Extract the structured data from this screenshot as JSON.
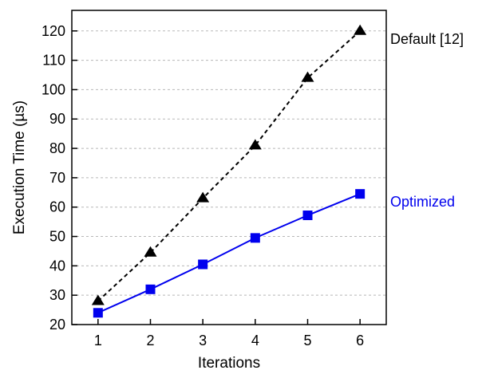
{
  "chart_data": {
    "type": "line",
    "xlabel": "Iterations",
    "ylabel": "Execution Time   (µs)",
    "xlim": [
      0.5,
      6.5
    ],
    "ylim": [
      20,
      127
    ],
    "x_ticks": [
      1,
      2,
      3,
      4,
      5,
      6
    ],
    "y_ticks": [
      20,
      30,
      40,
      50,
      60,
      70,
      80,
      90,
      100,
      110,
      120
    ],
    "grid": "horizontal dotted",
    "legend": "inline labels at right of plot",
    "x": [
      1,
      2,
      3,
      4,
      5,
      6
    ],
    "series": [
      {
        "name": "Default [12]",
        "values": [
          28,
          44.5,
          63,
          81,
          104,
          120
        ],
        "color": "#000000",
        "line": "dashed",
        "marker": "triangle"
      },
      {
        "name": "Optimized",
        "values": [
          24,
          32,
          40.5,
          49.5,
          57.2,
          64.5
        ],
        "color": "#0000ee",
        "line": "solid",
        "marker": "square"
      }
    ]
  }
}
